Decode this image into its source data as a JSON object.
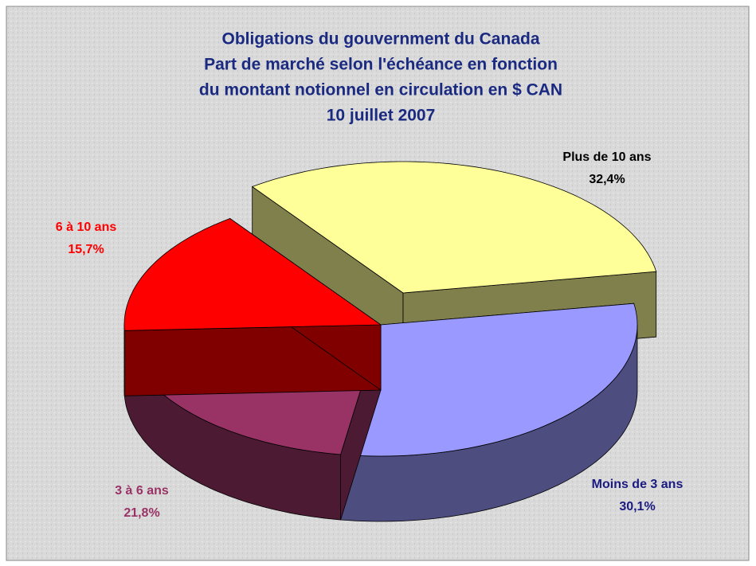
{
  "chart_data": {
    "type": "pie3d",
    "title": [
      "Obligations du gouvernment du Canada",
      "Part de marché selon l'échéance en fonction",
      "du montant notionnel en circulation en $ CAN",
      "10 juillet 2007"
    ],
    "categories": [
      "Plus de 10 ans",
      "Moins de 3 ans",
      "3 à 6 ans",
      "6 à 10 ans"
    ],
    "values": [
      32.4,
      30.1,
      21.8,
      15.7
    ],
    "value_labels": [
      "32,4%",
      "30,1%",
      "21,8%",
      "15,7%"
    ],
    "colors": [
      "#ffff99",
      "#9999ff",
      "#993366",
      "#ff0000"
    ],
    "label_colors": [
      "#000000",
      "#1a1a80",
      "#993366",
      "#ff0000"
    ],
    "exploded": [
      true,
      false,
      false,
      false
    ]
  }
}
